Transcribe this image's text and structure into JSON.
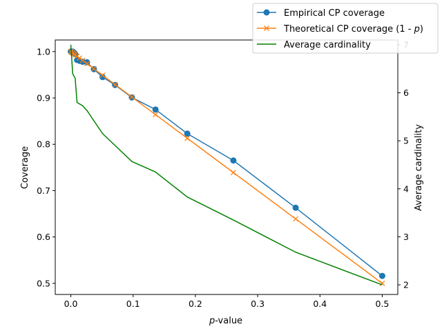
{
  "chart_data": {
    "type": "line",
    "xlabel": "p-value",
    "ylabel": "Coverage",
    "y2label": "Average cardinality",
    "xlim": [
      -0.025,
      0.525
    ],
    "ylim": [
      0.476,
      1.025
    ],
    "y2lim": [
      1.8,
      7.1
    ],
    "x_ticks": [
      0.0,
      0.1,
      0.2,
      0.3,
      0.4,
      0.5
    ],
    "x_tick_labels": [
      "0.0",
      "0.1",
      "0.2",
      "0.3",
      "0.4",
      "0.5"
    ],
    "y_ticks": [
      0.5,
      0.6,
      0.7,
      0.8,
      0.9,
      1.0
    ],
    "y_tick_labels": [
      "0.5",
      "0.6",
      "0.7",
      "0.8",
      "0.9",
      "1.0"
    ],
    "y2_ticks": [
      2,
      3,
      4,
      5,
      6,
      7
    ],
    "y2_tick_labels": [
      "2",
      "3",
      "4",
      "5",
      "6",
      "7"
    ],
    "legend_position": "top-right",
    "grid": false,
    "series": [
      {
        "name": "Empirical CP coverage",
        "axis": "left",
        "color": "#1f77b4",
        "marker": "circle",
        "x": [
          0.0,
          0.001,
          0.003,
          0.005,
          0.007,
          0.01,
          0.014,
          0.019,
          0.026,
          0.037,
          0.051,
          0.071,
          0.098,
          0.136,
          0.187,
          0.261,
          0.361,
          0.5
        ],
        "y": [
          1.0,
          1.0,
          1.0,
          0.998,
          0.995,
          0.982,
          0.98,
          0.978,
          0.977,
          0.962,
          0.945,
          0.928,
          0.901,
          0.875,
          0.823,
          0.765,
          0.663,
          0.516
        ]
      },
      {
        "name": "Theoretical CP coverage (1 - p)",
        "axis": "left",
        "color": "#ff7f0e",
        "marker": "x",
        "x": [
          0.0,
          0.001,
          0.003,
          0.005,
          0.007,
          0.01,
          0.014,
          0.019,
          0.026,
          0.037,
          0.051,
          0.071,
          0.098,
          0.136,
          0.187,
          0.261,
          0.361,
          0.5
        ],
        "y": [
          1.0,
          0.999,
          0.997,
          0.995,
          0.993,
          0.99,
          0.986,
          0.981,
          0.974,
          0.963,
          0.949,
          0.929,
          0.902,
          0.864,
          0.813,
          0.739,
          0.639,
          0.5
        ]
      },
      {
        "name": "Average cardinality",
        "axis": "right",
        "color": "#008000",
        "marker": "none",
        "x": [
          0.0,
          0.003,
          0.007,
          0.01,
          0.019,
          0.026,
          0.051,
          0.098,
          0.136,
          0.187,
          0.261,
          0.361,
          0.5
        ],
        "y": [
          7.0,
          6.4,
          6.3,
          5.8,
          5.73,
          5.63,
          5.15,
          4.57,
          4.35,
          3.83,
          3.35,
          2.68,
          2.0
        ]
      }
    ]
  },
  "legend": {
    "items": [
      {
        "label": "Empirical CP coverage",
        "label_before": "Empirical CP coverage",
        "label_italic": "",
        "label_after": ""
      },
      {
        "label": "Theoretical CP coverage (1 - p)",
        "label_before": "Theoretical CP coverage (1 - ",
        "label_italic": "p",
        "label_after": ")"
      },
      {
        "label": "Average cardinality",
        "label_before": "Average cardinality",
        "label_italic": "",
        "label_after": ""
      }
    ]
  },
  "xaxis_title": {
    "italic": "p",
    "rest": "-value"
  }
}
